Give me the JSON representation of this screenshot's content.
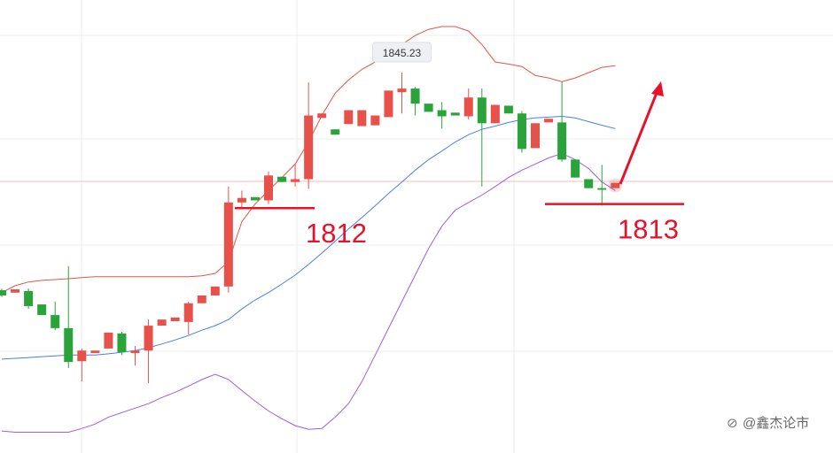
{
  "chart_data": {
    "type": "candlestick",
    "ylim": [
      1752,
      1863
    ],
    "up_color": "#e8514a",
    "down_color": "#2aa43a",
    "ohlc": {
      "open": [
        1791.9,
        1791.3,
        1791.7,
        1788.4,
        1785.8,
        1782.6,
        1774.5,
        1776.5,
        1777.6,
        1781.3,
        1776.5,
        1777.1,
        1783.2,
        1784.3,
        1784.1,
        1788.7,
        1790.6,
        1792.8,
        1813.4,
        1814.7,
        1813.9,
        1819.7,
        1818.4,
        1819.1,
        1834.1,
        1831.3,
        1832.6,
        1832.1,
        1832.3,
        1834.3,
        1840.4,
        1841.3,
        1837.6,
        1836.0,
        1835.4,
        1834.5,
        1839.1,
        1832.8,
        1837.1,
        1835.2,
        1826.7,
        1833.0,
        1833.0,
        1823.9,
        1819.1,
        1816.9,
        1816.9
      ],
      "high": [
        1792.3,
        1792.1,
        1792.3,
        1788.4,
        1789.1,
        1797.8,
        1777.6,
        1777.1,
        1781.5,
        1781.7,
        1778.2,
        1784.7,
        1784.7,
        1785.2,
        1789.1,
        1790.6,
        1792.8,
        1817.3,
        1816.3,
        1814.7,
        1821.0,
        1819.7,
        1822.8,
        1842.8,
        1835.2,
        1831.3,
        1836.0,
        1836.0,
        1834.7,
        1840.8,
        1845.23,
        1841.7,
        1837.6,
        1838.0,
        1835.4,
        1841.3,
        1841.3,
        1837.3,
        1837.1,
        1835.8,
        1832.8,
        1833.9,
        1843.0,
        1823.9,
        1819.1,
        1822.6,
        1818.2
      ],
      "low": [
        1790.2,
        1791.3,
        1787.3,
        1785.8,
        1782.1,
        1772.8,
        1769.5,
        1776.5,
        1777.6,
        1776.0,
        1773.4,
        1769.1,
        1783.2,
        1784.3,
        1781.0,
        1788.7,
        1790.6,
        1791.3,
        1811.9,
        1813.9,
        1813.0,
        1818.4,
        1817.3,
        1816.7,
        1834.1,
        1830.0,
        1832.6,
        1832.1,
        1832.3,
        1834.3,
        1835.2,
        1834.7,
        1835.6,
        1831.5,
        1834.7,
        1833.7,
        1817.3,
        1832.8,
        1835.2,
        1825.6,
        1826.7,
        1833.0,
        1823.4,
        1819.5,
        1816.9,
        1812.6,
        1816.9
      ],
      "close": [
        1790.6,
        1792.1,
        1788.0,
        1785.8,
        1782.6,
        1774.3,
        1777.1,
        1777.1,
        1781.5,
        1776.7,
        1777.1,
        1783.2,
        1784.7,
        1785.2,
        1788.7,
        1790.6,
        1792.8,
        1813.4,
        1814.5,
        1813.9,
        1820.0,
        1818.4,
        1819.1,
        1834.7,
        1835.2,
        1830.0,
        1836.0,
        1836.0,
        1834.7,
        1840.8,
        1841.3,
        1837.6,
        1835.6,
        1834.5,
        1834.7,
        1839.1,
        1832.8,
        1837.3,
        1835.2,
        1826.5,
        1832.8,
        1833.9,
        1823.9,
        1819.5,
        1816.9,
        1816.5,
        1818.2
      ]
    },
    "bands": [
      {
        "color": "#e0564a",
        "values": [
          1791.3,
          1793.0,
          1793.9,
          1794.3,
          1794.5,
          1794.7,
          1795.0,
          1795.2,
          1795.2,
          1795.2,
          1795.2,
          1795.2,
          1795.2,
          1795.2,
          1795.2,
          1795.4,
          1796.0,
          1798.9,
          1808.7,
          1813.0,
          1816.3,
          1819.5,
          1822.8,
          1828.2,
          1834.7,
          1840.2,
          1843.4,
          1846.0,
          1847.8,
          1850.0,
          1852.1,
          1854.3,
          1855.8,
          1856.5,
          1856.5,
          1855.4,
          1852.1,
          1847.8,
          1847.3,
          1846.7,
          1844.5,
          1843.9,
          1843.0,
          1843.9,
          1845.2,
          1846.5,
          1846.9
        ]
      },
      {
        "color": "#4a7fe0",
        "values": [
          1775.0,
          1775.2,
          1775.4,
          1775.6,
          1775.8,
          1776.0,
          1776.0,
          1776.0,
          1776.3,
          1776.7,
          1777.1,
          1777.8,
          1778.7,
          1779.7,
          1780.8,
          1782.1,
          1783.2,
          1784.7,
          1787.3,
          1789.5,
          1791.3,
          1793.4,
          1795.6,
          1798.2,
          1801.0,
          1803.9,
          1806.9,
          1809.7,
          1812.6,
          1815.6,
          1818.4,
          1821.3,
          1823.9,
          1826.0,
          1828.2,
          1830.0,
          1831.3,
          1832.1,
          1833.0,
          1833.7,
          1834.1,
          1834.3,
          1834.5,
          1834.1,
          1833.2,
          1832.3,
          1831.5
        ]
      },
      {
        "color": "#9b5ce6",
        "values": [
          1757.4,
          1757.1,
          1757.1,
          1757.1,
          1757.1,
          1757.1,
          1758.0,
          1759.1,
          1760.8,
          1761.9,
          1763.0,
          1764.1,
          1765.6,
          1766.9,
          1768.4,
          1770.0,
          1771.3,
          1770.0,
          1767.3,
          1764.7,
          1762.3,
          1760.4,
          1758.7,
          1757.8,
          1758.0,
          1760.8,
          1764.1,
          1769.5,
          1776.0,
          1782.6,
          1789.1,
          1795.6,
          1802.1,
          1807.6,
          1811.5,
          1813.4,
          1815.2,
          1817.3,
          1819.5,
          1821.3,
          1822.8,
          1824.3,
          1825.4,
          1823.9,
          1821.7,
          1818.4,
          1816.3
        ]
      }
    ],
    "high_label": 1845.23,
    "levels": [
      1812,
      1813
    ],
    "annotation_color": "#e8102a",
    "watermark": "@鑫杰论市"
  }
}
